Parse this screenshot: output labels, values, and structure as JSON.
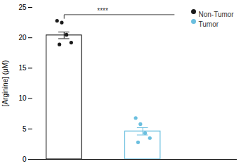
{
  "chart_data": {
    "type": "bar",
    "categories": [
      "Non-Tumor",
      "Tumor"
    ],
    "values": [
      20.4,
      4.6
    ],
    "errors": [
      0.55,
      0.6
    ],
    "points": [
      [
        22.8,
        22.5,
        20.5,
        19.2,
        18.9
      ],
      [
        6.8,
        5.8,
        4.3,
        3.5,
        2.8
      ]
    ],
    "colors": [
      "#1a1a1a",
      "#6bbfdf"
    ],
    "ylabel": "[Arginine] (μM)",
    "ylim": [
      0,
      25
    ],
    "yticks": [
      0,
      5,
      10,
      15,
      20,
      25
    ],
    "tick_labels": "y",
    "legend": "upper right",
    "annotation": "****"
  }
}
